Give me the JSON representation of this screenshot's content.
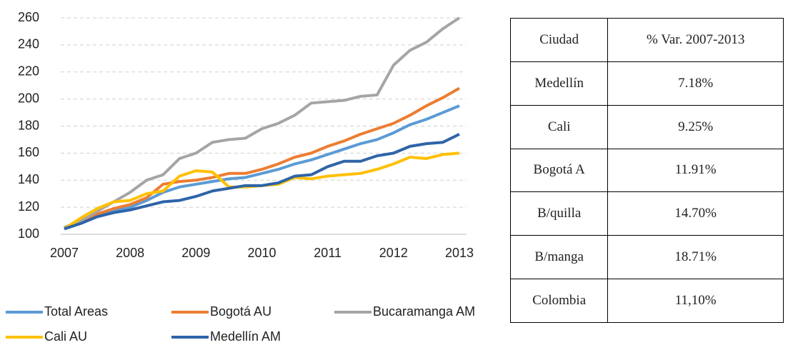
{
  "chart_data": {
    "type": "line",
    "categories": [
      "2007",
      null,
      null,
      null,
      "2008",
      null,
      null,
      null,
      "2009",
      null,
      null,
      null,
      "2010",
      null,
      null,
      null,
      "2011",
      null,
      null,
      null,
      "2012",
      null,
      null,
      null,
      "2013"
    ],
    "series": [
      {
        "name": "Total Areas",
        "color": "#5b9bd5",
        "values": [
          105,
          110,
          114,
          117,
          120,
          125,
          131,
          135,
          137,
          139,
          141,
          142,
          145,
          148,
          152,
          155,
          159,
          163,
          167,
          170,
          175,
          181,
          185,
          190,
          195
        ]
      },
      {
        "name": "Bogotá AU",
        "color": "#ed7d31",
        "values": [
          104,
          110,
          115,
          119,
          122,
          127,
          137,
          139,
          140,
          142,
          145,
          145,
          148,
          152,
          157,
          160,
          165,
          169,
          174,
          178,
          182,
          188,
          195,
          201,
          208
        ]
      },
      {
        "name": "Bucaramanga AM",
        "color": "#a5a5a5",
        "values": [
          105,
          110,
          117,
          124,
          131,
          140,
          144,
          156,
          160,
          168,
          170,
          171,
          178,
          182,
          188,
          197,
          198,
          199,
          202,
          203,
          225,
          236,
          242,
          252,
          260
        ]
      },
      {
        "name": "Cali AU",
        "color": "#ffc000",
        "values": [
          104,
          112,
          119,
          124,
          125,
          130,
          132,
          143,
          147,
          146,
          135,
          135,
          136,
          137,
          142,
          141,
          143,
          144,
          145,
          148,
          152,
          157,
          156,
          159,
          160
        ]
      },
      {
        "name": "Medellín AM",
        "color": "#2e64a8",
        "values": [
          104,
          108,
          113,
          116,
          118,
          121,
          124,
          125,
          128,
          132,
          134,
          136,
          136,
          138,
          143,
          144,
          150,
          154,
          154,
          158,
          160,
          165,
          167,
          168,
          174
        ]
      }
    ],
    "ylim": [
      100,
      260
    ],
    "yticks": [
      100,
      120,
      140,
      160,
      180,
      200,
      220,
      240,
      260
    ],
    "grid": true
  },
  "table": {
    "header": [
      "Ciudad",
      "% Var. 2007-2013"
    ],
    "rows": [
      [
        "Medellín",
        "7.18%"
      ],
      [
        "Cali",
        "9.25%"
      ],
      [
        "Bogotá A",
        "11.91%"
      ],
      [
        "B/quilla",
        "14.70%"
      ],
      [
        "B/manga",
        "18.71%"
      ],
      [
        "Colombia",
        "11,10%"
      ]
    ]
  }
}
